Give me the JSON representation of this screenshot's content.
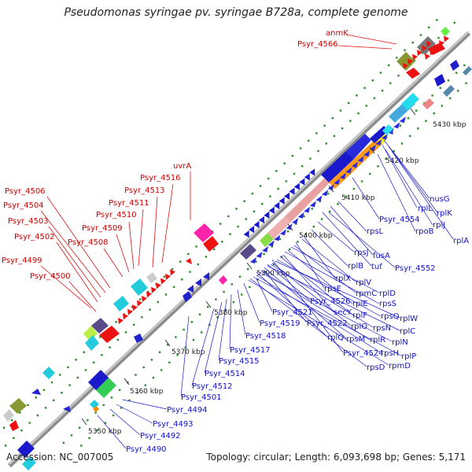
{
  "title": "Pseudomonas syringae pv. syringae B728a, complete genome",
  "footer": {
    "accession": "Accession: NC_007005",
    "summary": "Topology: circular; Length: 6,093,698 bp; Genes: 5,171"
  },
  "colors": {
    "backbone": "#9a9a9a",
    "dots": "#2a8a2a",
    "red_label": "#cc0000",
    "blue_label": "#1010cc"
  },
  "kbp_ticks": [
    "5350 kbp",
    "5360 kbp",
    "5370 kbp",
    "5380 kbp",
    "5390 kbp",
    "5400 kbp",
    "5410 kbp",
    "5420 kbp",
    "5430 kbp"
  ],
  "red_labels": [
    "anmK",
    "Psyr_4566",
    "uvrA",
    "Psyr_4516",
    "Psyr_4513",
    "Psyr_4511",
    "Psyr_4510",
    "Psyr_4509",
    "Psyr_4508",
    "Psyr_4506",
    "Psyr_4504",
    "Psyr_4503",
    "Psyr_4502",
    "Psyr_4499",
    "Psyr_4500"
  ],
  "blue_labels": [
    "nusG",
    "rplL",
    "rplK",
    "rplJ",
    "rplA",
    "rpoB",
    "Psyr_4554",
    "rpsL",
    "fusA",
    "tuf",
    "Psyr_4552",
    "rpsJ",
    "rplB",
    "rplX",
    "rplV",
    "rpsE",
    "rpmC",
    "rplD",
    "rplE",
    "rpsS",
    "secY",
    "rplF",
    "rpsQ",
    "rplW",
    "rplO",
    "rpsN",
    "rplC",
    "rpsM",
    "rplR",
    "rplN",
    "rplQ",
    "rpsH",
    "rplP",
    "rpsD",
    "rpmD",
    "Psyr_4526",
    "Psyr_4521",
    "Psyr_4519",
    "Psyr_4522",
    "Psyr_4524",
    "Psyr_4518",
    "Psyr_4517",
    "Psyr_4515",
    "Psyr_4514",
    "Psyr_4512",
    "Psyr_4501",
    "Psyr_4494",
    "Psyr_4493",
    "Psyr_4492",
    "Psyr_4490"
  ]
}
